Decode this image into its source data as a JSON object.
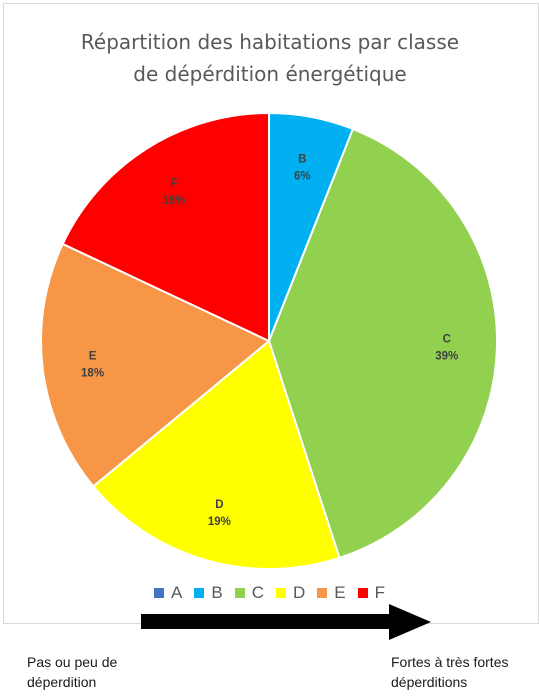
{
  "chart_data": {
    "type": "pie",
    "title": "Répartition des habitations par classe de dépérdition énergétique",
    "title_lines": [
      "Répartition des habitations par classe",
      "de dépérdition énergétique"
    ],
    "categories": [
      "A",
      "B",
      "C",
      "D",
      "E",
      "F"
    ],
    "values": [
      0,
      6,
      39,
      19,
      18,
      18
    ],
    "value_labels": [
      "",
      "6%",
      "39%",
      "19%",
      "18%",
      "18%"
    ],
    "unit": "%",
    "colors": [
      "#4472c4",
      "#00b0f0",
      "#92d050",
      "#ffff00",
      "#f79646",
      "#ff0000"
    ],
    "label_colors": [
      "#404040",
      "#404040",
      "#404040",
      "#404040",
      "#404040",
      "#404040"
    ],
    "start_angle_deg": 0,
    "direction": "clockwise",
    "legend_position": "bottom",
    "legend": [
      "A",
      "B",
      "C",
      "D",
      "E",
      "F"
    ]
  },
  "scale_arrow": {
    "left_label": [
      "Pas ou peu de",
      "déperdition"
    ],
    "right_label": [
      "Fortes à très fortes",
      "déperditions"
    ],
    "direction": "left-to-right"
  }
}
